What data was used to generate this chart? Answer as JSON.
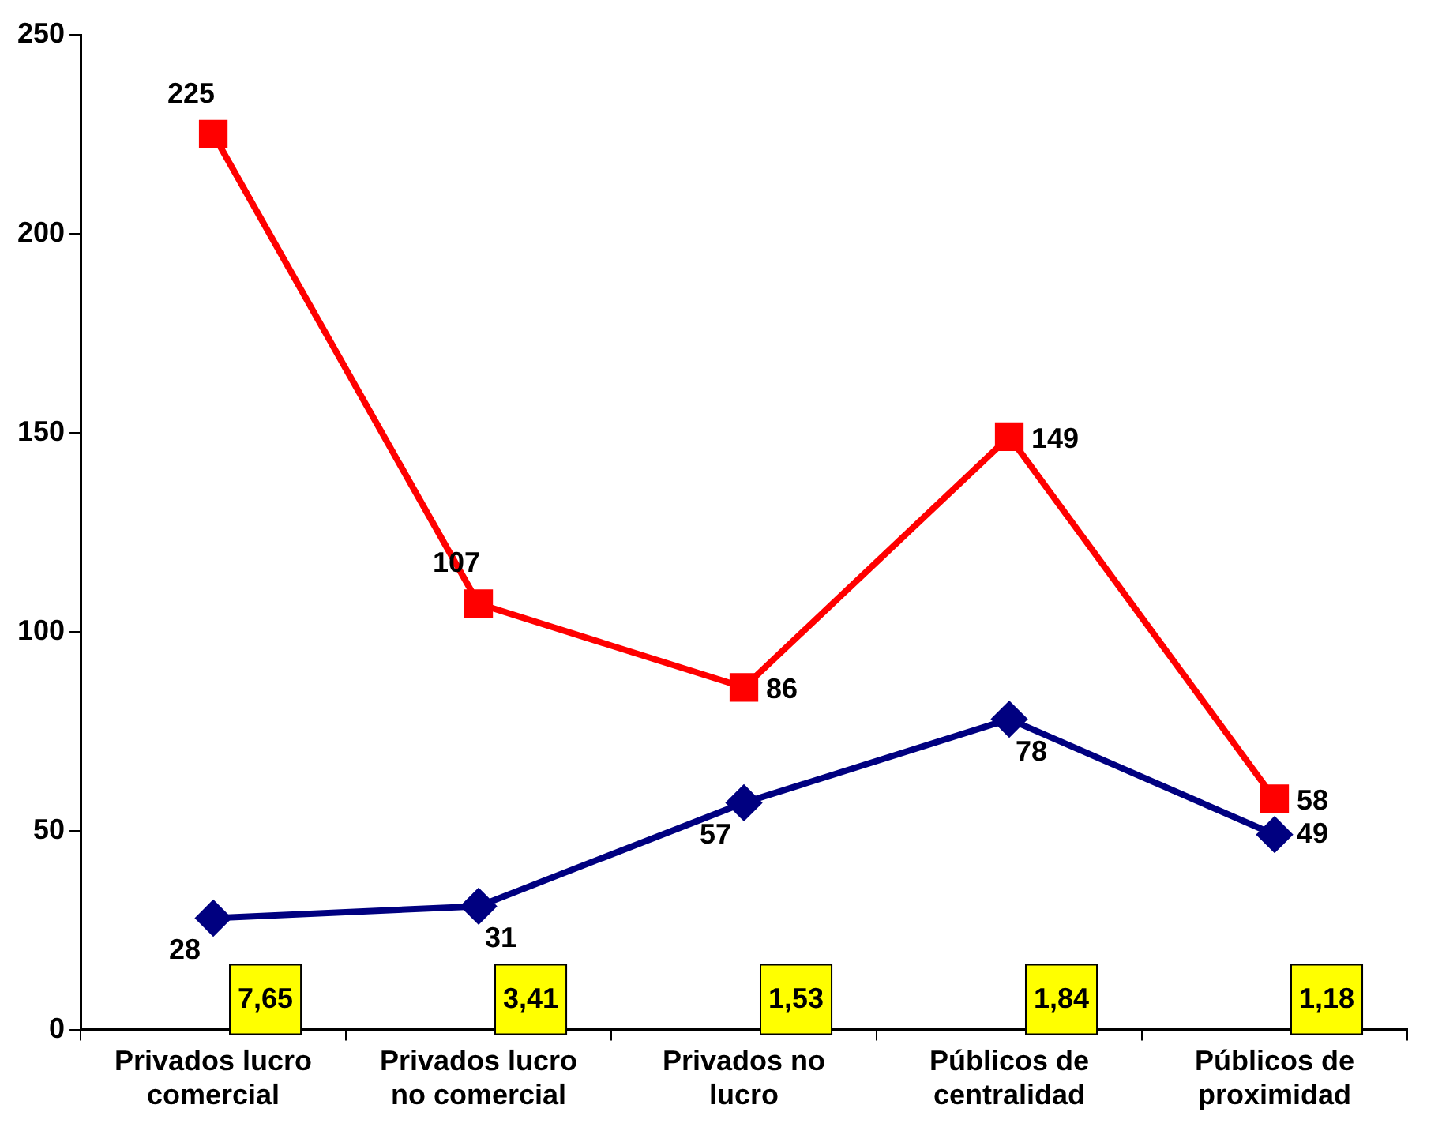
{
  "chart_data": {
    "type": "line",
    "categories": [
      "Privados lucro comercial",
      "Privados lucro no comercial",
      "Privados no lucro",
      "Públicos de centralidad",
      "Públicos de proximidad"
    ],
    "series": [
      {
        "color": "#ff0000",
        "values": [
          225,
          107,
          86,
          149,
          58
        ],
        "marker": "square"
      },
      {
        "color": "#000080",
        "values": [
          28,
          31,
          57,
          78,
          49
        ],
        "marker": "diamond"
      }
    ],
    "ylim": [
      0,
      250
    ],
    "yticks": [
      0,
      50,
      100,
      150,
      200,
      250
    ],
    "grid": false,
    "legend": false,
    "data_labels": true,
    "annotations": [
      "7,65",
      "3,41",
      "1,53",
      "1,84",
      "1,18"
    ]
  }
}
